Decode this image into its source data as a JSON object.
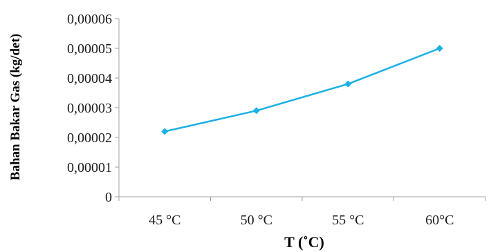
{
  "chart_data": {
    "type": "line",
    "title": "",
    "xlabel": "T (˚C)",
    "ylabel": "Bahan Bakar Gas (kg/det)",
    "categories": [
      "45 °C",
      "50 °C",
      "55 °C",
      "60°C"
    ],
    "series": [
      {
        "values": [
          2.2e-05,
          2.9e-05,
          3.8e-05,
          5e-05
        ],
        "color": "#1ab0e8",
        "marker": "diamond"
      }
    ],
    "ylim": [
      0,
      6e-05
    ],
    "y_ticks": [
      0,
      1e-05,
      2e-05,
      3e-05,
      4e-05,
      5e-05,
      6e-05
    ],
    "y_tick_labels": [
      "0",
      "0,00001",
      "0,00002",
      "0,00003",
      "0,00004",
      "0,00005",
      "0,00006"
    ],
    "grid": false,
    "legend": "none",
    "axis_color": "#a0a0a0"
  }
}
